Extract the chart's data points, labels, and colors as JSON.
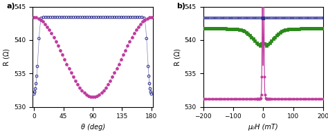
{
  "panel_a": {
    "title": "a)",
    "xlabel": "θ (deg)",
    "ylabel": "R (Ω)",
    "xlim": [
      -2,
      182
    ],
    "ylim": [
      530,
      545
    ],
    "xticks": [
      0,
      45,
      90,
      135,
      180
    ],
    "yticks": [
      530,
      535,
      540,
      545
    ],
    "color_open": "#2d2d8f",
    "color_filled": "#c0389e",
    "R_parallel": 543.4,
    "R_perp": 531.5,
    "R_mid": 537.5
  },
  "panel_b": {
    "title": "b)",
    "xlabel": "μ₀H (mT)",
    "ylabel": "R (Ω)",
    "xlim": [
      -200,
      200
    ],
    "ylim": [
      530,
      545
    ],
    "xticks": [
      -200,
      -100,
      0,
      100,
      200
    ],
    "yticks": [
      530,
      535,
      540,
      545
    ],
    "color_blue": "#2d2d8f",
    "color_green": "#2a8a1a",
    "color_pink": "#c0389e",
    "R_x_par": 543.3,
    "R_z_oop": 541.7,
    "R_y_perp": 531.2,
    "R_z_min": 539.0
  }
}
